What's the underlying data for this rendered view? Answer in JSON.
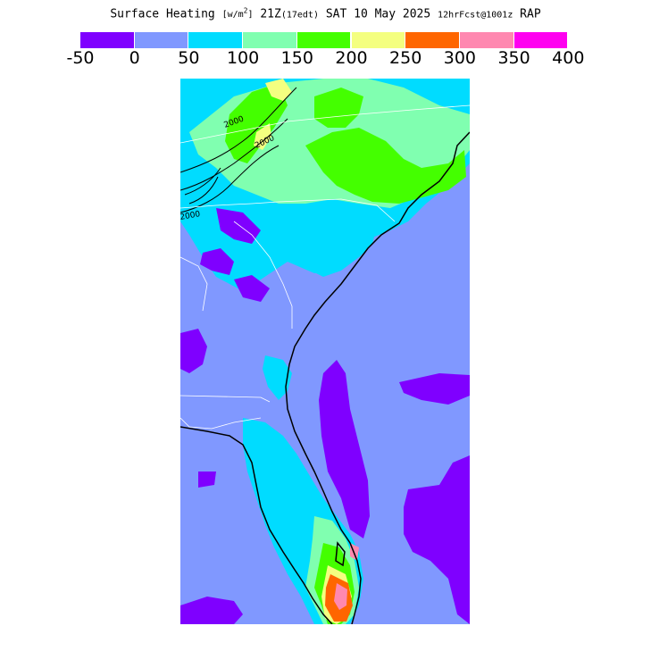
{
  "title": {
    "field": "Surface Heating",
    "units_open": "[w/m",
    "units_sup": "2",
    "units_close": "]",
    "valid_time": "21Z",
    "local_time": "(17edt)",
    "date": "SAT 10 May 2025",
    "forecast": "12hrFcst@1001z",
    "model": "RAP"
  },
  "colorbar": {
    "colors": [
      "#7f00ff",
      "#8098ff",
      "#00dcff",
      "#80ffb0",
      "#44ff00",
      "#f4ff80",
      "#ff6600",
      "#ff88b0",
      "#ff00f0"
    ],
    "tick_labels": [
      "-50",
      "0",
      "50",
      "100",
      "150",
      "200",
      "250",
      "300",
      "350",
      "400"
    ]
  },
  "map": {
    "contour_labels": [
      "2000",
      "2000",
      "2000"
    ],
    "background_color": "#8098ff",
    "coastline_color": "#000000",
    "border_color": "#ffffff"
  }
}
